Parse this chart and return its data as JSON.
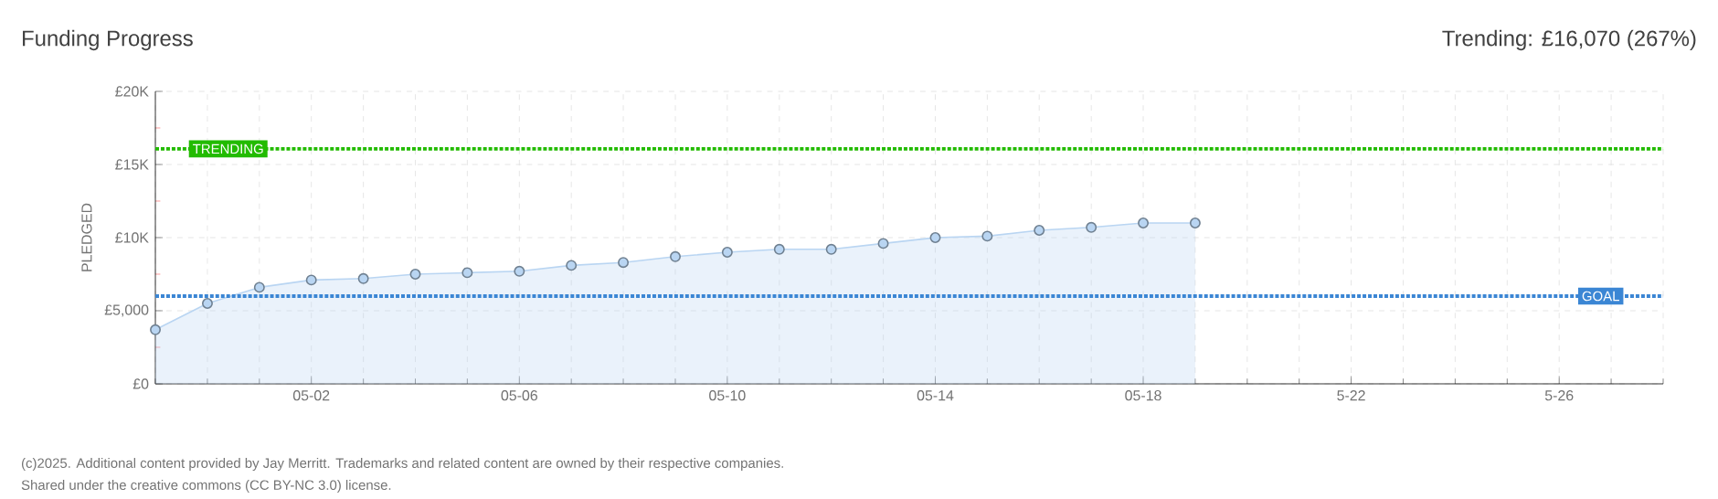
{
  "chart_data": {
    "type": "area",
    "title": "Funding Progress",
    "ylabel": "PLEDGED",
    "annotations": [
      "Trending:  £16,070 (267%)",
      "(c)2025. Additional content provided by Jay Merritt. Trademarks and related content are owned by their respective companies.",
      "Shared under the creative commons (CC BY-NC 3.0) license."
    ],
    "x": [
      "2025-04-29",
      "2025-04-30",
      "2025-05-01",
      "2025-05-02",
      "2025-05-03",
      "2025-05-04",
      "2025-05-05",
      "2025-05-06",
      "2025-05-07",
      "2025-05-08",
      "2025-05-09",
      "2025-05-10",
      "2025-05-11",
      "2025-05-12",
      "2025-05-13",
      "2025-05-14",
      "2025-05-15",
      "2025-05-16",
      "2025-05-17",
      "2025-05-18",
      "2025-05-19"
    ],
    "series": [
      {
        "color": "#b9d5f2",
        "values": [
          3700,
          5500,
          6600,
          7100,
          7200,
          7500,
          7600,
          7700,
          8100,
          8300,
          8700,
          9000,
          9200,
          9200,
          9600,
          10000,
          10100,
          10500,
          10700,
          11000,
          11000
        ]
      }
    ],
    "xlim": [
      "2025-04-29",
      "2025-05-28"
    ],
    "xticks": [
      {
        "value": "2025-04-29",
        "label": null
      },
      {
        "value": "2025-04-30",
        "label": null
      },
      {
        "value": "2025-05-01",
        "label": null
      },
      {
        "value": "2025-05-02",
        "label": "05-02"
      },
      {
        "value": "2025-05-03",
        "label": null
      },
      {
        "value": "2025-05-04",
        "label": null
      },
      {
        "value": "2025-05-05",
        "label": null
      },
      {
        "value": "2025-05-06",
        "label": "05-06"
      },
      {
        "value": "2025-05-07",
        "label": null
      },
      {
        "value": "2025-05-08",
        "label": null
      },
      {
        "value": "2025-05-09",
        "label": null
      },
      {
        "value": "2025-05-10",
        "label": "05-10"
      },
      {
        "value": "2025-05-11",
        "label": null
      },
      {
        "value": "2025-05-12",
        "label": null
      },
      {
        "value": "2025-05-13",
        "label": null
      },
      {
        "value": "2025-05-14",
        "label": "05-14"
      },
      {
        "value": "2025-05-15",
        "label": null
      },
      {
        "value": "2025-05-16",
        "label": null
      },
      {
        "value": "2025-05-17",
        "label": null
      },
      {
        "value": "2025-05-18",
        "label": "05-18"
      },
      {
        "value": "2025-05-19",
        "label": null
      },
      {
        "value": "2025-05-20",
        "label": null
      },
      {
        "value": "2025-05-21",
        "label": null
      },
      {
        "value": "2025-05-22",
        "label": "5-22"
      },
      {
        "value": "2025-05-23",
        "label": null
      },
      {
        "value": "2025-05-24",
        "label": null
      },
      {
        "value": "2025-05-25",
        "label": null
      },
      {
        "value": "2025-05-26",
        "label": "5-26"
      },
      {
        "value": "2025-05-27",
        "label": null
      },
      {
        "value": "2025-05-28",
        "label": null
      }
    ],
    "ylim": [
      0,
      20000
    ],
    "yticks": [
      {
        "value": 0,
        "label": "£0"
      },
      {
        "value": 2500,
        "label": null
      },
      {
        "value": 5000,
        "label": "£5,000"
      },
      {
        "value": 7500,
        "label": null
      },
      {
        "value": 10000,
        "label": "£10K"
      },
      {
        "value": 12500,
        "label": null
      },
      {
        "value": 15000,
        "label": "£15K"
      },
      {
        "value": 17500,
        "label": null
      },
      {
        "value": 20000,
        "label": "£20K"
      }
    ],
    "ref_lines": [
      {
        "axis": "y",
        "value": 6000,
        "label": "GOAL",
        "color": "#3b86d4",
        "line_style": "dotted"
      },
      {
        "axis": "y",
        "value": 16070,
        "label": "TRENDING",
        "color": "#22bb00",
        "line_style": "dotted"
      }
    ],
    "grid": true,
    "marker": "circle"
  }
}
